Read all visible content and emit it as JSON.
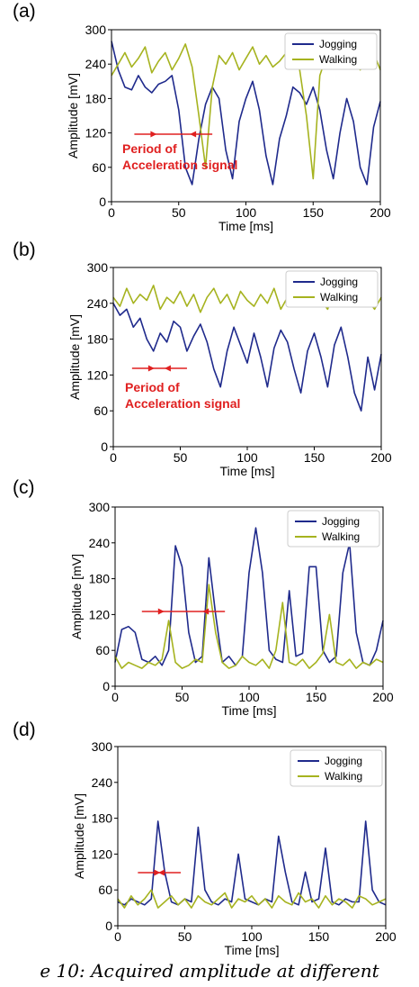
{
  "caption": "e 10: Acquired amplitude at different",
  "panels": [
    {
      "label": "(a)",
      "xlabel": "Time [ms]",
      "ylabel": "Amplitude [mV]",
      "legend": [
        {
          "name": "Jogging",
          "color": "#1f2a8c"
        },
        {
          "name": "Walking",
          "color": "#a6b31f"
        }
      ],
      "annotation": "Period of\nAcceleration signal",
      "period_arrow_ms": [
        17,
        75
      ]
    },
    {
      "label": "(b)",
      "xlabel": "Time [ms]",
      "ylabel": "Amplitude [mV]",
      "legend": [
        {
          "name": "Jogging",
          "color": "#1f2a8c"
        },
        {
          "name": "Walking",
          "color": "#a6b31f"
        }
      ],
      "annotation": "Period of\nAcceleration signal",
      "period_arrow_ms": [
        14,
        55
      ]
    },
    {
      "label": "(c)",
      "xlabel": "Time [ms]",
      "ylabel": "Amplitude [mV]",
      "legend": [
        {
          "name": "Jogging",
          "color": "#1f2a8c"
        },
        {
          "name": "Walking",
          "color": "#a6b31f"
        }
      ],
      "annotation": "",
      "period_arrow_ms": [
        20,
        82
      ]
    },
    {
      "label": "(d)",
      "xlabel": "Time [ms]",
      "ylabel": "Amplitude [mV]",
      "legend": [
        {
          "name": "Jogging",
          "color": "#1f2a8c"
        },
        {
          "name": "Walking",
          "color": "#a6b31f"
        }
      ],
      "annotation": "",
      "period_arrow_ms": [
        15,
        47
      ]
    }
  ],
  "chart_data": [
    {
      "type": "line",
      "xlim": [
        0,
        200
      ],
      "ylim": [
        0,
        300
      ],
      "xticks": [
        0,
        50,
        100,
        150,
        200
      ],
      "yticks": [
        0,
        60,
        120,
        180,
        240,
        300
      ],
      "xlabel": "Time [ms]",
      "ylabel": "Amplitude [mV]",
      "legend_position": "top-right",
      "series": [
        {
          "name": "Jogging",
          "color": "#1f2a8c",
          "x": [
            0,
            5,
            10,
            15,
            20,
            25,
            30,
            35,
            40,
            45,
            50,
            55,
            60,
            65,
            70,
            75,
            80,
            85,
            90,
            95,
            100,
            105,
            110,
            115,
            120,
            125,
            130,
            135,
            140,
            145,
            150,
            155,
            160,
            165,
            170,
            175,
            180,
            185,
            190,
            195,
            200
          ],
          "y": [
            280,
            230,
            200,
            195,
            220,
            200,
            190,
            205,
            210,
            220,
            160,
            60,
            30,
            110,
            170,
            200,
            180,
            90,
            40,
            140,
            180,
            210,
            160,
            80,
            30,
            110,
            150,
            200,
            190,
            170,
            200,
            160,
            90,
            40,
            120,
            180,
            140,
            60,
            30,
            130,
            175
          ]
        },
        {
          "name": "Walking",
          "color": "#a6b31f",
          "x": [
            0,
            5,
            10,
            15,
            20,
            25,
            30,
            35,
            40,
            45,
            50,
            55,
            60,
            65,
            70,
            75,
            80,
            85,
            90,
            95,
            100,
            105,
            110,
            115,
            120,
            125,
            130,
            135,
            140,
            145,
            150,
            155,
            160,
            165,
            170,
            175,
            180,
            185,
            190,
            195,
            200
          ],
          "y": [
            220,
            240,
            260,
            235,
            250,
            270,
            225,
            245,
            260,
            230,
            250,
            275,
            235,
            150,
            60,
            200,
            255,
            240,
            260,
            230,
            250,
            270,
            240,
            255,
            235,
            245,
            260,
            250,
            230,
            150,
            40,
            220,
            255,
            240,
            260,
            235,
            250,
            230,
            245,
            260,
            230
          ]
        }
      ]
    },
    {
      "type": "line",
      "xlim": [
        0,
        200
      ],
      "ylim": [
        0,
        300
      ],
      "xticks": [
        0,
        50,
        100,
        150,
        200
      ],
      "yticks": [
        0,
        60,
        120,
        180,
        240,
        300
      ],
      "xlabel": "Time [ms]",
      "ylabel": "Amplitude [mV]",
      "legend_position": "top-right",
      "series": [
        {
          "name": "Jogging",
          "color": "#1f2a8c",
          "x": [
            0,
            5,
            10,
            15,
            20,
            25,
            30,
            35,
            40,
            45,
            50,
            55,
            60,
            65,
            70,
            75,
            80,
            85,
            90,
            95,
            100,
            105,
            110,
            115,
            120,
            125,
            130,
            135,
            140,
            145,
            150,
            155,
            160,
            165,
            170,
            175,
            180,
            185,
            190,
            195,
            200
          ],
          "y": [
            240,
            220,
            230,
            200,
            215,
            180,
            160,
            190,
            175,
            210,
            200,
            160,
            185,
            205,
            175,
            130,
            100,
            160,
            200,
            170,
            140,
            190,
            150,
            100,
            165,
            195,
            175,
            130,
            90,
            160,
            190,
            150,
            100,
            170,
            200,
            150,
            90,
            60,
            150,
            95,
            155
          ]
        },
        {
          "name": "Walking",
          "color": "#a6b31f",
          "x": [
            0,
            5,
            10,
            15,
            20,
            25,
            30,
            35,
            40,
            45,
            50,
            55,
            60,
            65,
            70,
            75,
            80,
            85,
            90,
            95,
            100,
            105,
            110,
            115,
            120,
            125,
            130,
            135,
            140,
            145,
            150,
            155,
            160,
            165,
            170,
            175,
            180,
            185,
            190,
            195,
            200
          ],
          "y": [
            250,
            235,
            265,
            240,
            255,
            245,
            270,
            230,
            250,
            240,
            260,
            235,
            255,
            225,
            250,
            265,
            240,
            255,
            230,
            260,
            245,
            235,
            255,
            240,
            265,
            230,
            250,
            245,
            260,
            235,
            255,
            245,
            230,
            260,
            240,
            250,
            235,
            255,
            245,
            230,
            250
          ]
        }
      ]
    },
    {
      "type": "line",
      "xlim": [
        0,
        200
      ],
      "ylim": [
        0,
        300
      ],
      "xticks": [
        0,
        50,
        100,
        150,
        200
      ],
      "yticks": [
        0,
        60,
        120,
        180,
        240,
        300
      ],
      "xlabel": "Time [ms]",
      "ylabel": "Amplitude [mV]",
      "legend_position": "top-right",
      "series": [
        {
          "name": "Jogging",
          "color": "#1f2a8c",
          "x": [
            0,
            5,
            10,
            15,
            20,
            25,
            30,
            35,
            40,
            45,
            50,
            55,
            60,
            65,
            70,
            75,
            80,
            85,
            90,
            95,
            100,
            105,
            110,
            115,
            120,
            125,
            130,
            135,
            140,
            145,
            150,
            155,
            160,
            165,
            170,
            175,
            180,
            185,
            190,
            195,
            200
          ],
          "y": [
            40,
            95,
            100,
            90,
            45,
            40,
            50,
            35,
            60,
            235,
            200,
            90,
            40,
            50,
            215,
            120,
            40,
            50,
            35,
            50,
            190,
            265,
            190,
            60,
            45,
            40,
            160,
            50,
            55,
            200,
            200,
            60,
            40,
            50,
            190,
            240,
            90,
            40,
            35,
            60,
            110
          ]
        },
        {
          "name": "Walking",
          "color": "#a6b31f",
          "x": [
            0,
            5,
            10,
            15,
            20,
            25,
            30,
            35,
            40,
            45,
            50,
            55,
            60,
            65,
            70,
            75,
            80,
            85,
            90,
            95,
            100,
            105,
            110,
            115,
            120,
            125,
            130,
            135,
            140,
            145,
            150,
            155,
            160,
            165,
            170,
            175,
            180,
            185,
            190,
            195,
            200
          ],
          "y": [
            50,
            30,
            40,
            35,
            30,
            40,
            35,
            45,
            110,
            40,
            30,
            35,
            45,
            40,
            170,
            90,
            40,
            30,
            35,
            50,
            40,
            35,
            45,
            30,
            60,
            140,
            40,
            35,
            45,
            30,
            40,
            55,
            120,
            40,
            35,
            45,
            30,
            40,
            35,
            45,
            40
          ]
        }
      ]
    },
    {
      "type": "line",
      "xlim": [
        0,
        200
      ],
      "ylim": [
        0,
        300
      ],
      "xticks": [
        0,
        50,
        100,
        150,
        200
      ],
      "yticks": [
        0,
        60,
        120,
        180,
        240,
        300
      ],
      "xlabel": "Time [ms]",
      "ylabel": "Amplitude [mV]",
      "legend_position": "top-right",
      "series": [
        {
          "name": "Jogging",
          "color": "#1f2a8c",
          "x": [
            0,
            5,
            10,
            15,
            20,
            25,
            30,
            35,
            40,
            45,
            50,
            55,
            60,
            65,
            70,
            75,
            80,
            85,
            90,
            95,
            100,
            105,
            110,
            115,
            120,
            125,
            130,
            135,
            140,
            145,
            150,
            155,
            160,
            165,
            170,
            175,
            180,
            185,
            190,
            195,
            200
          ],
          "y": [
            40,
            35,
            45,
            40,
            35,
            45,
            175,
            90,
            40,
            35,
            45,
            40,
            165,
            60,
            40,
            35,
            45,
            40,
            120,
            45,
            40,
            35,
            45,
            40,
            150,
            90,
            40,
            35,
            90,
            40,
            45,
            130,
            40,
            35,
            45,
            40,
            40,
            175,
            60,
            40,
            35
          ]
        },
        {
          "name": "Walking",
          "color": "#a6b31f",
          "x": [
            0,
            5,
            10,
            15,
            20,
            25,
            30,
            35,
            40,
            45,
            50,
            55,
            60,
            65,
            70,
            75,
            80,
            85,
            90,
            95,
            100,
            105,
            110,
            115,
            120,
            125,
            130,
            135,
            140,
            145,
            150,
            155,
            160,
            165,
            170,
            175,
            180,
            185,
            190,
            195,
            200
          ],
          "y": [
            45,
            30,
            50,
            35,
            45,
            60,
            30,
            40,
            50,
            35,
            45,
            30,
            50,
            40,
            35,
            45,
            55,
            30,
            45,
            40,
            50,
            35,
            45,
            30,
            50,
            40,
            35,
            55,
            40,
            45,
            30,
            50,
            35,
            45,
            40,
            30,
            50,
            45,
            35,
            40,
            45
          ]
        }
      ]
    }
  ]
}
